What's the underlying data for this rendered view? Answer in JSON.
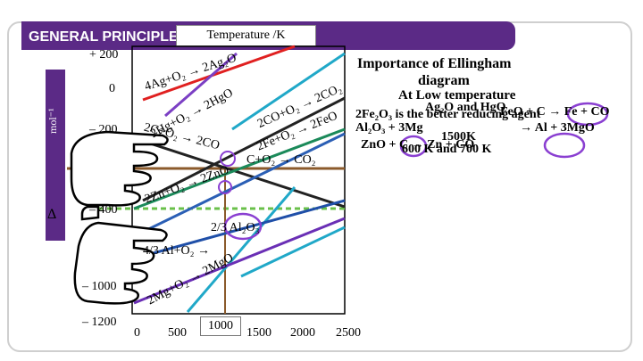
{
  "header": {
    "title": "GENERAL PRINCIPLE",
    "temperature_label": "Temperature /K"
  },
  "y_axis": {
    "label": "mol⁻¹",
    "delta": "Δ",
    "ticks": [
      "+ 200",
      "0",
      "– 200",
      "– 400",
      "– 1000",
      "– 1200"
    ]
  },
  "x_axis": {
    "ticks": [
      "0",
      "500",
      "1000",
      "1500",
      "2000",
      "2500"
    ]
  },
  "reactions": {
    "ag": "4Ag+O₂ → 2Ag₂O",
    "hg": "2Hg+O₂ → 2HgO",
    "c_co": "2C+O₂ → 2CO",
    "co_co2": "2CO+O₂ → 2CO₂",
    "fe": "2Fe+O₂ → 2FeO",
    "c_co2": "C+O₂ → CO₂",
    "zn": "2Zn+O₂ → 2ZnO",
    "al_left": "4/3 Al+O₂ →",
    "al_right": "2/3 Al₂O₃",
    "mg": "2Mg+O₂ → 2MgO"
  },
  "right_panel": {
    "heading_1": "Importance of Ellingham",
    "heading_2": "diagram",
    "line_a": "At Low temperature",
    "line_b": "Ag₂O and HgO",
    "line_c": "FeO + C → Fe + CO",
    "line_d": "2Fe₂O₃ is the better reducing agent",
    "line_e": "Al₂O₃ + 3Mg",
    "line_f": "→ Al + 3MgO",
    "line_g": "1500K",
    "line_h": "ZnO + C → Zn + CO",
    "line_i": "600 K and 700 K"
  },
  "chart_data": {
    "type": "line",
    "title": "",
    "xlabel": "Temperature /K",
    "ylabel": "mol⁻¹",
    "x_ticks": [
      0,
      500,
      1000,
      1500,
      2000,
      2500
    ],
    "y_ticks": [
      200,
      0,
      -200,
      -400,
      -1000,
      -1200
    ],
    "series": [
      {
        "name": "4Ag+O₂ → 2Ag₂O",
        "color": "#e02020",
        "x": [
          0,
          1400
        ],
        "y": [
          -60,
          200
        ]
      },
      {
        "name": "2Hg+O₂ → 2HgO",
        "color": "#7b3fc4",
        "x": [
          0,
          1100
        ],
        "y": [
          -220,
          0
        ]
      },
      {
        "name": "2C+O₂ → 2CO",
        "color": "#222222",
        "x": [
          0,
          2500
        ],
        "y": [
          -220,
          -620
        ]
      },
      {
        "name": "2CO+O₂ → 2CO₂",
        "color": "#1b8a5a",
        "x": [
          0,
          2400
        ],
        "y": [
          -560,
          -180
        ]
      },
      {
        "name": "2Fe+O₂ → 2FeO",
        "color": "#20a8c8",
        "x": [
          0,
          2300
        ],
        "y": [
          -500,
          -160
        ]
      },
      {
        "name": "C+O₂ → CO₂",
        "color": "#8b5a2b",
        "x": [
          0,
          2500
        ],
        "y": [
          -394,
          -396
        ]
      },
      {
        "name": "2Zn+O₂ → 2ZnO",
        "color": "#2b5fb5",
        "x": [
          0,
          2200
        ],
        "y": [
          -700,
          -250
        ]
      },
      {
        "name": "4/3 Al+O₂ → 2/3 Al₂O₃",
        "color": "#1f4fa8",
        "x": [
          0,
          2500
        ],
        "y": [
          -1050,
          -700
        ]
      },
      {
        "name": "2Mg+O₂ → 2MgO",
        "color": "#6a2fb5",
        "x": [
          0,
          2400
        ],
        "y": [
          -1180,
          -650
        ]
      }
    ]
  },
  "colors": {
    "banner": "#5b2a86",
    "accent_circle": "#8a3fd1",
    "guide_dashed": "#6ac04a"
  }
}
